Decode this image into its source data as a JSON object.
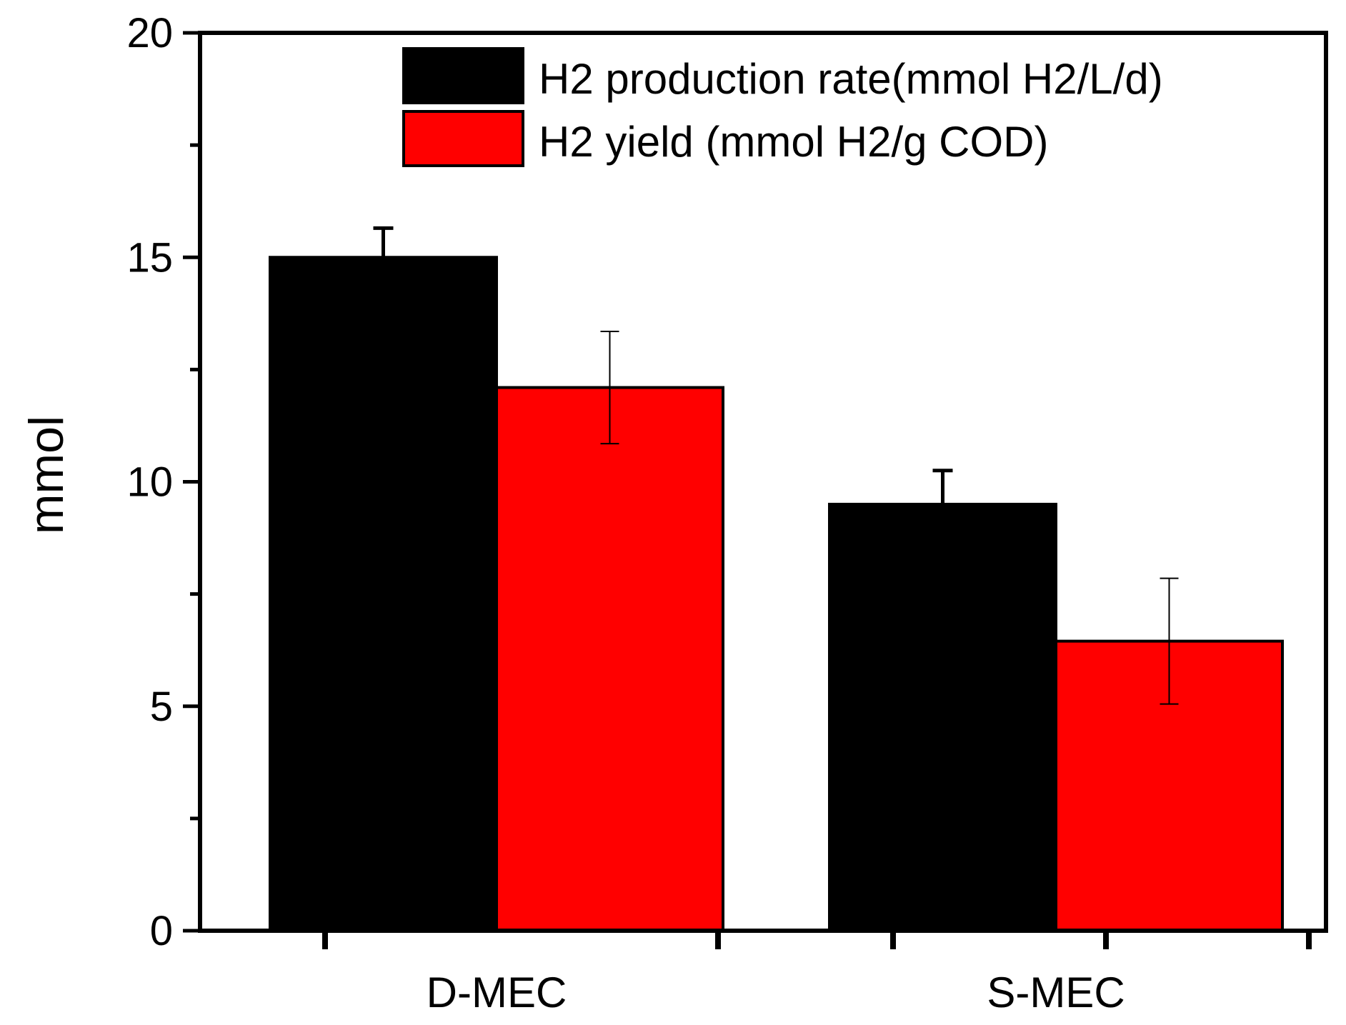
{
  "chart_data": {
    "type": "bar",
    "title": "",
    "xlabel": "",
    "ylabel": "mmol",
    "categories": [
      "D-MEC",
      "S-MEC"
    ],
    "ylim": [
      0,
      20
    ],
    "yticks": [
      0,
      5,
      10,
      15,
      20
    ],
    "yticks_labels": [
      "0",
      "5",
      "10",
      "15",
      "20"
    ],
    "grid": false,
    "legend_position": "top-right",
    "series": [
      {
        "name": "H2 production rate(mmol H2/L/d)",
        "color": "#000000",
        "values": [
          15.0,
          9.5
        ],
        "errors": [
          0.65,
          0.75
        ]
      },
      {
        "name": "H2 yield (mmol H2/g COD)",
        "color": "#ff0000",
        "values": [
          12.1,
          6.45
        ],
        "errors": [
          1.25,
          1.4
        ]
      }
    ]
  }
}
